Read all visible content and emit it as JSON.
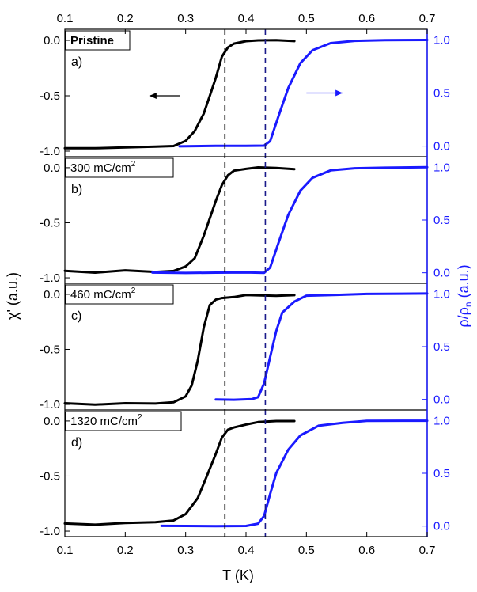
{
  "chart_data": {
    "type": "line",
    "xlabel": "T (K)",
    "ylabel_left": "χ' (a.u.)",
    "ylabel_right": "ρ/ρ",
    "ylabel_right_subscript": "n",
    "ylabel_right_suffix": " (a.u.)",
    "xlim": [
      0.1,
      0.7
    ],
    "x_ticks": [
      "0.1",
      "0.2",
      "0.3",
      "0.4",
      "0.5",
      "0.6",
      "0.7"
    ],
    "ylim_left": [
      -1.05,
      0.1
    ],
    "ylim_right": [
      -0.1,
      1.1
    ],
    "y_ticks_left": [
      "0.0",
      "-0.5",
      "-1.0"
    ],
    "y_ticks_right": [
      "1.0",
      "0.5",
      "0.0"
    ],
    "dashed_lines_x": [
      0.365,
      0.432
    ],
    "colors": {
      "chi": "#000000",
      "rho": "#1a1aff",
      "right_axis": "#1a1aff"
    },
    "arrow_chi": {
      "from": [
        0.29,
        -0.5
      ],
      "to": [
        0.24,
        -0.5
      ]
    },
    "arrow_rho": {
      "from": [
        0.5,
        0.5
      ],
      "to": [
        0.56,
        0.5
      ]
    },
    "panels": [
      {
        "letter": "a)",
        "label": "Pristine",
        "label_super": "",
        "chi": [
          [
            0.1,
            -0.97
          ],
          [
            0.15,
            -0.97
          ],
          [
            0.2,
            -0.97
          ],
          [
            0.25,
            -0.96
          ],
          [
            0.28,
            -0.95
          ],
          [
            0.3,
            -0.91
          ],
          [
            0.315,
            -0.82
          ],
          [
            0.33,
            -0.66
          ],
          [
            0.34,
            -0.5
          ],
          [
            0.35,
            -0.34
          ],
          [
            0.36,
            -0.15
          ],
          [
            0.37,
            -0.06
          ],
          [
            0.38,
            -0.03
          ],
          [
            0.4,
            -0.01
          ],
          [
            0.42,
            0.0
          ],
          [
            0.45,
            0.0
          ],
          [
            0.48,
            -0.01
          ]
        ],
        "rho": [
          [
            0.29,
            0.0
          ],
          [
            0.35,
            0.0
          ],
          [
            0.4,
            0.0
          ],
          [
            0.43,
            0.0
          ],
          [
            0.44,
            0.05
          ],
          [
            0.455,
            0.3
          ],
          [
            0.47,
            0.55
          ],
          [
            0.49,
            0.78
          ],
          [
            0.51,
            0.9
          ],
          [
            0.54,
            0.97
          ],
          [
            0.58,
            0.99
          ],
          [
            0.63,
            1.0
          ],
          [
            0.7,
            1.0
          ]
        ]
      },
      {
        "letter": "b)",
        "label": "300 mC/cm",
        "label_super": "2",
        "chi": [
          [
            0.1,
            -0.94
          ],
          [
            0.15,
            -0.95
          ],
          [
            0.2,
            -0.93
          ],
          [
            0.25,
            -0.95
          ],
          [
            0.28,
            -0.94
          ],
          [
            0.3,
            -0.9
          ],
          [
            0.315,
            -0.82
          ],
          [
            0.33,
            -0.62
          ],
          [
            0.34,
            -0.46
          ],
          [
            0.35,
            -0.3
          ],
          [
            0.36,
            -0.16
          ],
          [
            0.37,
            -0.07
          ],
          [
            0.38,
            -0.03
          ],
          [
            0.4,
            -0.01
          ],
          [
            0.42,
            0.0
          ],
          [
            0.45,
            0.0
          ],
          [
            0.48,
            -0.01
          ]
        ],
        "rho": [
          [
            0.245,
            0.0
          ],
          [
            0.3,
            0.0
          ],
          [
            0.35,
            0.0
          ],
          [
            0.4,
            0.0
          ],
          [
            0.43,
            0.0
          ],
          [
            0.44,
            0.05
          ],
          [
            0.455,
            0.3
          ],
          [
            0.47,
            0.55
          ],
          [
            0.49,
            0.78
          ],
          [
            0.51,
            0.9
          ],
          [
            0.54,
            0.97
          ],
          [
            0.58,
            0.99
          ],
          [
            0.63,
            1.0
          ],
          [
            0.7,
            1.0
          ]
        ]
      },
      {
        "letter": "c)",
        "label": "460 mC/cm",
        "label_super": "2",
        "chi": [
          [
            0.1,
            -0.99
          ],
          [
            0.15,
            -1.0
          ],
          [
            0.2,
            -0.99
          ],
          [
            0.25,
            -0.99
          ],
          [
            0.28,
            -0.98
          ],
          [
            0.3,
            -0.93
          ],
          [
            0.31,
            -0.83
          ],
          [
            0.32,
            -0.6
          ],
          [
            0.33,
            -0.3
          ],
          [
            0.34,
            -0.1
          ],
          [
            0.35,
            -0.05
          ],
          [
            0.36,
            -0.03
          ],
          [
            0.38,
            -0.02
          ],
          [
            0.4,
            -0.01
          ],
          [
            0.45,
            -0.01
          ],
          [
            0.48,
            -0.01
          ]
        ],
        "rho": [
          [
            0.35,
            0.0
          ],
          [
            0.38,
            0.0
          ],
          [
            0.41,
            0.0
          ],
          [
            0.42,
            0.02
          ],
          [
            0.43,
            0.15
          ],
          [
            0.44,
            0.4
          ],
          [
            0.45,
            0.65
          ],
          [
            0.46,
            0.82
          ],
          [
            0.48,
            0.93
          ],
          [
            0.5,
            0.98
          ],
          [
            0.55,
            0.99
          ],
          [
            0.6,
            1.0
          ],
          [
            0.7,
            1.0
          ]
        ]
      },
      {
        "letter": "d)",
        "label": "1320 mC/cm",
        "label_super": "2",
        "chi": [
          [
            0.1,
            -0.93
          ],
          [
            0.15,
            -0.94
          ],
          [
            0.2,
            -0.93
          ],
          [
            0.25,
            -0.92
          ],
          [
            0.28,
            -0.9
          ],
          [
            0.3,
            -0.85
          ],
          [
            0.32,
            -0.7
          ],
          [
            0.335,
            -0.5
          ],
          [
            0.35,
            -0.3
          ],
          [
            0.36,
            -0.15
          ],
          [
            0.37,
            -0.08
          ],
          [
            0.38,
            -0.06
          ],
          [
            0.4,
            -0.03
          ],
          [
            0.42,
            -0.01
          ],
          [
            0.45,
            0.0
          ],
          [
            0.48,
            0.0
          ]
        ],
        "rho": [
          [
            0.26,
            0.0
          ],
          [
            0.3,
            0.0
          ],
          [
            0.35,
            0.0
          ],
          [
            0.4,
            0.0
          ],
          [
            0.42,
            0.02
          ],
          [
            0.43,
            0.1
          ],
          [
            0.44,
            0.3
          ],
          [
            0.45,
            0.5
          ],
          [
            0.47,
            0.72
          ],
          [
            0.49,
            0.86
          ],
          [
            0.52,
            0.95
          ],
          [
            0.56,
            0.98
          ],
          [
            0.6,
            1.0
          ],
          [
            0.7,
            1.0
          ]
        ]
      }
    ]
  }
}
